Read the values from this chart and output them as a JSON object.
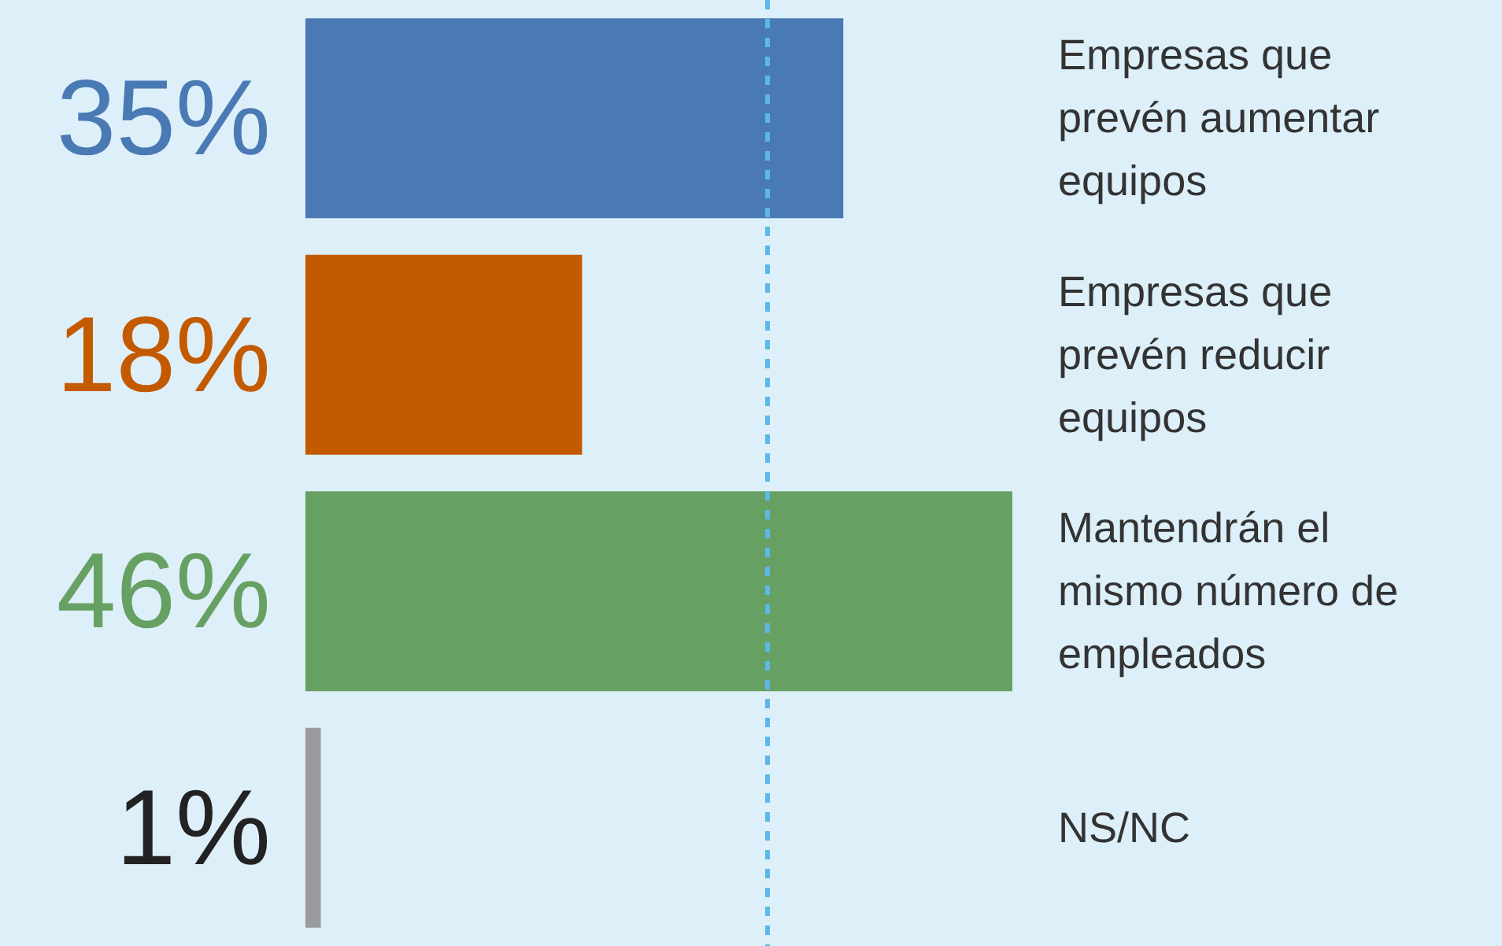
{
  "chart_data": {
    "type": "bar",
    "orientation": "horizontal",
    "categories": [
      "Empresas que prevén aumentar equipos",
      "Empresas que prevén reducir equipos",
      "Mantendrán el mismo número de empleados",
      "NS/NC"
    ],
    "values": [
      35,
      18,
      46,
      1
    ],
    "colors": [
      "#4a7ab4",
      "#c45a00",
      "#67a063",
      "#9a9a9f"
    ],
    "value_labels": [
      "35%",
      "18%",
      "46%",
      "1%"
    ],
    "ref_lines": [
      {
        "axis": "x",
        "value": 30,
        "color": "#5bb8e8",
        "line_style": "dashed"
      }
    ],
    "tick_labels": "y"
  }
}
